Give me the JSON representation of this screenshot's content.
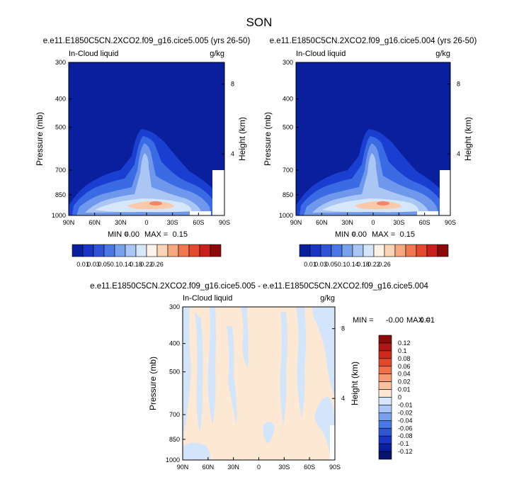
{
  "title": "SON",
  "colors": {
    "abs_fill": [
      "#0a1f9e",
      "#1a35c4",
      "#2f55d6",
      "#4a78e6",
      "#79a2ee",
      "#a9c6f5",
      "#d6e6fb",
      "#fff2e6",
      "#fbd3b6",
      "#f6a77e",
      "#ef7851",
      "#e44a2e",
      "#c8201a",
      "#8a0a0a"
    ],
    "abs_deep": "#1a3ecf",
    "abs_mid": "#3a6ae4",
    "abs_light": "#6f98ec",
    "abs_pale": "#a9c6f5",
    "abs_core": "#f9c9a8",
    "abs_max": "#f08868",
    "diff_bg": "#fde8d4",
    "diff_neg": "#d3e5fa"
  },
  "panels": [
    {
      "id": "left",
      "case": "e.e11.E1850C5CN.2XCO2.f09_g16.cice5.005 (yrs 26-50)",
      "variable": "In-Cloud liquid",
      "units": "g/kg",
      "stats": {
        "min_label": "MIN =",
        "min": "0.00",
        "max_label": "MAX =",
        "max": "0.15"
      },
      "ylabel": "Pressure (mb)",
      "ylabel_right": "Height (km)"
    },
    {
      "id": "right",
      "case": "e.e11.E1850C5CN.2XCO2.f09_g16.cice5.004 (yrs 26-50)",
      "variable": "In-Cloud liquid",
      "units": "g/kg",
      "stats": {
        "min_label": "MIN =",
        "min": "0.00",
        "max_label": "MAX =",
        "max": "0.15"
      },
      "ylabel": "Pressure (mb)",
      "ylabel_right": "Height (km)"
    }
  ],
  "diff": {
    "case": "e.e11.E1850C5CN.2XCO2.f09_g16.cice5.005 - e.e11.E1850C5CN.2XCO2.f09_g16.cice5.004",
    "variable": "In-Cloud liquid",
    "units": "g/kg",
    "stats": {
      "min_label": "MIN =",
      "min": "-0.00",
      "max_label": "MAX =",
      "max": "0.01"
    },
    "ylabel": "Pressure (mb)",
    "ylabel_right": "Height (km)"
  },
  "chart_data": [
    {
      "type": "heatmap",
      "title": "e.e11.E1850C5CN.2XCO2.f09_g16.cice5.005 (yrs 26-50)",
      "subtitle": "In-Cloud liquid (g/kg)",
      "x_ticks": [
        "90N",
        "60N",
        "30N",
        "0",
        "30S",
        "60S",
        "90S"
      ],
      "x_values": [
        90,
        60,
        30,
        0,
        -30,
        -60,
        -90
      ],
      "y_ticks": [
        "300",
        "400",
        "500",
        "700",
        "850",
        "1000"
      ],
      "y_values": [
        300,
        400,
        500,
        700,
        850,
        1000
      ],
      "y_right_ticks": [
        "8",
        "4"
      ],
      "y_right_values": [
        8,
        4
      ],
      "xlim": [
        90,
        -90
      ],
      "ylim": [
        1000,
        300
      ],
      "min": 0.0,
      "max": 0.15
    },
    {
      "type": "heatmap",
      "title": "e.e11.E1850C5CN.2XCO2.f09_g16.cice5.004 (yrs 26-50)",
      "subtitle": "In-Cloud liquid (g/kg)",
      "x_ticks": [
        "90N",
        "60N",
        "30N",
        "0",
        "30S",
        "60S",
        "90S"
      ],
      "x_values": [
        90,
        60,
        30,
        0,
        -30,
        -60,
        -90
      ],
      "y_ticks": [
        "300",
        "400",
        "500",
        "700",
        "850",
        "1000"
      ],
      "y_values": [
        300,
        400,
        500,
        700,
        850,
        1000
      ],
      "y_right_ticks": [
        "8",
        "4"
      ],
      "y_right_values": [
        8,
        4
      ],
      "xlim": [
        90,
        -90
      ],
      "ylim": [
        1000,
        300
      ],
      "min": 0.0,
      "max": 0.15
    },
    {
      "type": "heatmap",
      "title": "e.e11.E1850C5CN.2XCO2.f09_g16.cice5.005 - e.e11.E1850C5CN.2XCO2.f09_g16.cice5.004",
      "subtitle": "In-Cloud liquid (g/kg)",
      "x_ticks": [
        "90N",
        "60N",
        "30N",
        "0",
        "30S",
        "60S",
        "90S"
      ],
      "x_values": [
        90,
        60,
        30,
        0,
        -30,
        -60,
        -90
      ],
      "y_ticks": [
        "300",
        "400",
        "500",
        "700",
        "850",
        "1000"
      ],
      "y_values": [
        300,
        400,
        500,
        700,
        850,
        1000
      ],
      "y_right_ticks": [
        "8",
        "4"
      ],
      "y_right_values": [
        8,
        4
      ],
      "xlim": [
        90,
        -90
      ],
      "ylim": [
        1000,
        300
      ],
      "min": -0.0,
      "max": 0.01
    }
  ],
  "colorbar_abs": {
    "labels": [
      "0.01",
      "0.03",
      "0.05",
      "0.1",
      "0.14",
      "0.18",
      "0.22",
      "0.26"
    ]
  },
  "colorbar_diff": {
    "labels": [
      "0.12",
      "0.1",
      "0.08",
      "0.06",
      "0.04",
      "0.02",
      "0.01",
      "0",
      "-0.01",
      "-0.02",
      "-0.04",
      "-0.06",
      "-0.08",
      "-0.1",
      "-0.12"
    ],
    "colors": [
      "#8a0a0a",
      "#b01414",
      "#cc2a1a",
      "#e0482a",
      "#ef7049",
      "#f49a73",
      "#f8c0a0",
      "#fde8d4",
      "#d6e6fb",
      "#a9c6f5",
      "#79a2ee",
      "#4a78e6",
      "#2f55d6",
      "#1a35c4",
      "#0a1f9e",
      "#061470"
    ]
  }
}
